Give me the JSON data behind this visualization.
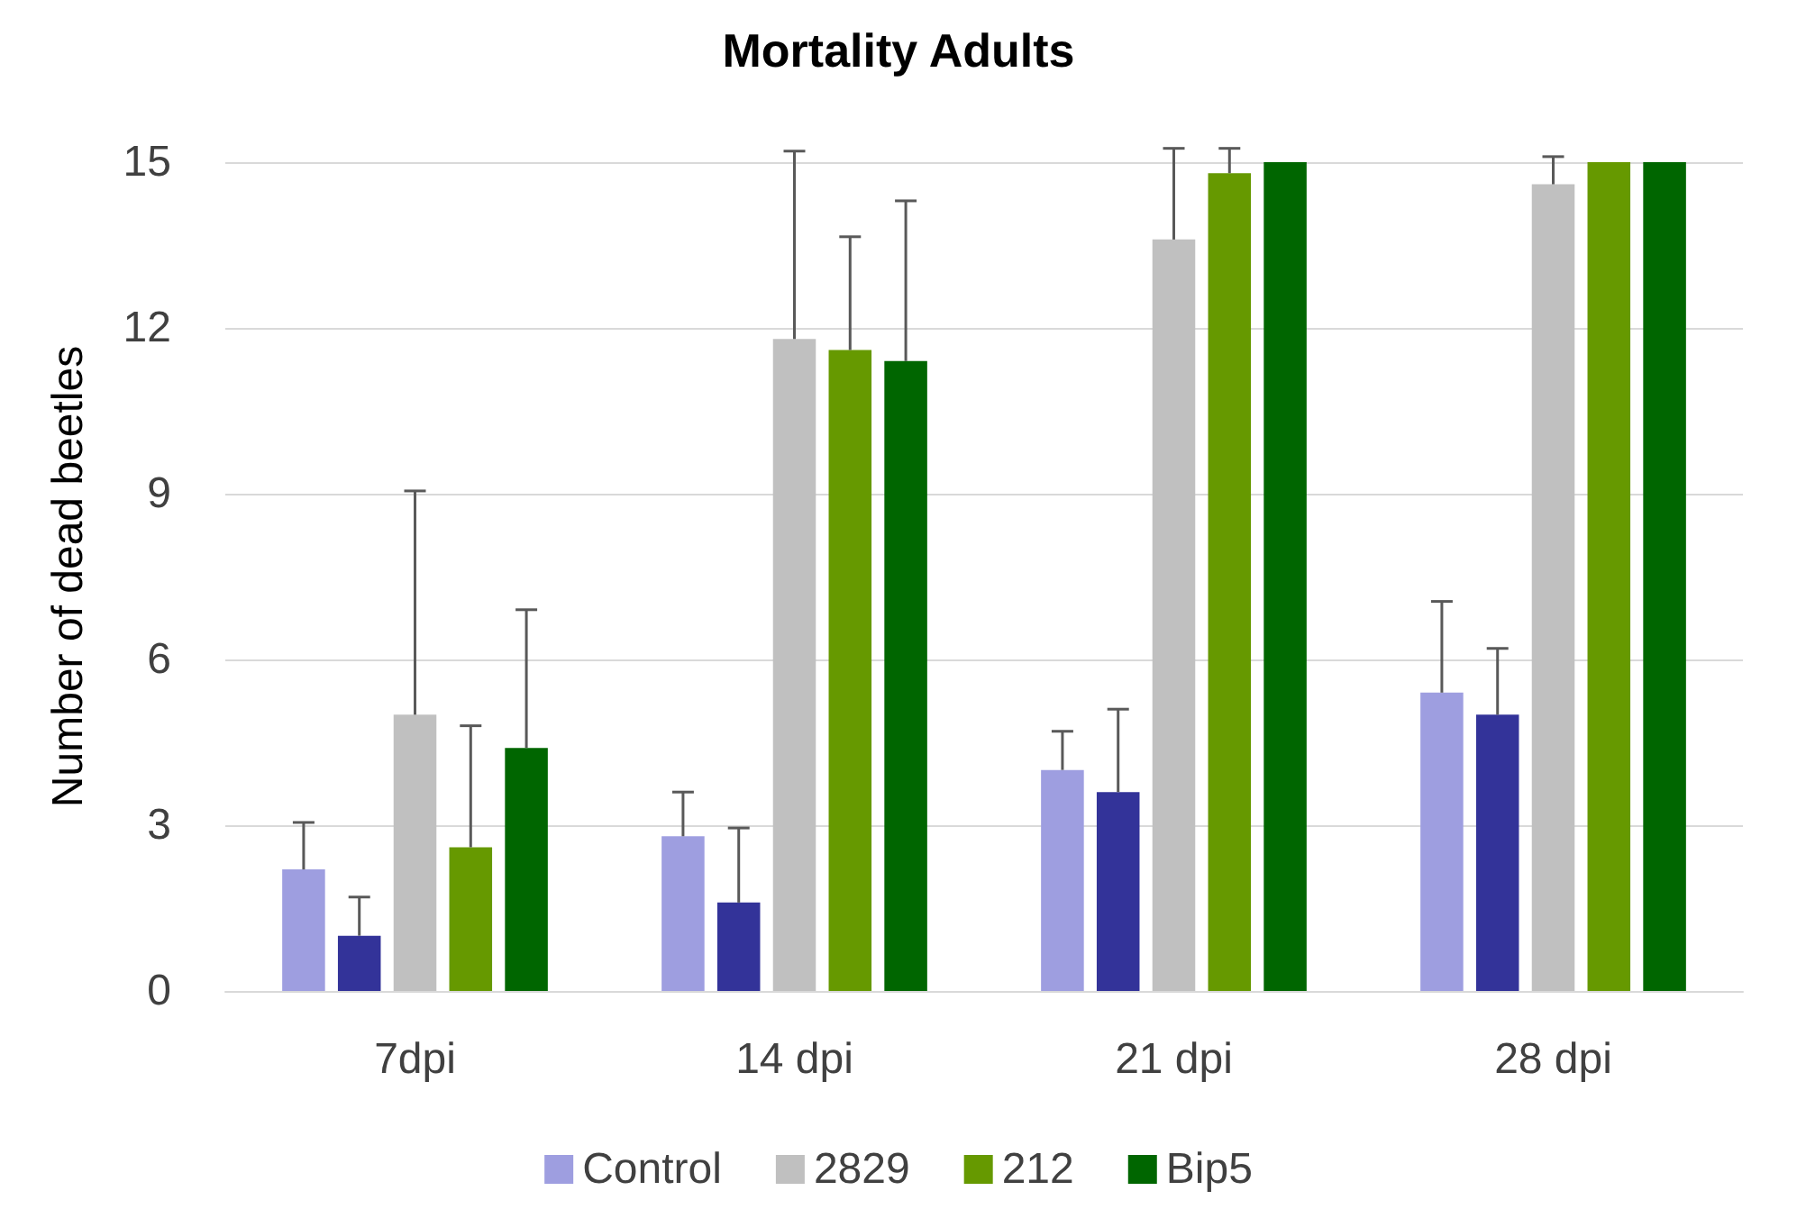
{
  "chart_data": {
    "type": "bar",
    "title": "Mortality Adults",
    "ylabel": "Number of dead beetles",
    "categories": [
      "7dpi",
      "14 dpi",
      "21 dpi",
      "28 dpi"
    ],
    "series": [
      {
        "name": "Control",
        "color": "#9e9ee0",
        "values": [
          2.2,
          2.8,
          4.0,
          5.4
        ],
        "errors": [
          [
            2.2,
            3.05
          ],
          [
            2.8,
            3.6
          ],
          [
            4.0,
            4.7
          ],
          [
            5.4,
            7.05
          ]
        ]
      },
      {
        "color": "#333399",
        "values": [
          1.0,
          1.6,
          3.6,
          5.0
        ],
        "errors": [
          [
            1.0,
            1.7
          ],
          [
            1.6,
            2.95
          ],
          [
            3.6,
            5.1
          ],
          [
            5.0,
            6.2
          ]
        ]
      },
      {
        "name": "2829",
        "color": "#c0c0c0",
        "values": [
          5.0,
          11.8,
          13.6,
          14.6
        ],
        "errors": [
          [
            5.0,
            9.05
          ],
          [
            11.8,
            15.2
          ],
          [
            13.6,
            15.25
          ],
          [
            14.6,
            15.1
          ]
        ]
      },
      {
        "name": "212",
        "color": "#669900",
        "values": [
          2.6,
          11.6,
          14.8,
          15
        ],
        "errors": [
          [
            2.6,
            4.8
          ],
          [
            11.6,
            13.65
          ],
          [
            14.8,
            15.25
          ],
          null
        ]
      },
      {
        "name": "Bip5",
        "color": "#006600",
        "values": [
          4.4,
          11.4,
          15,
          15
        ],
        "errors": [
          [
            4.4,
            6.9
          ],
          [
            11.4,
            14.3
          ],
          null,
          null
        ]
      }
    ],
    "ylim": [
      0,
      15
    ],
    "yticks": [
      0,
      3,
      6,
      9,
      12,
      15
    ],
    "grid": "y",
    "legend": "bottom"
  }
}
